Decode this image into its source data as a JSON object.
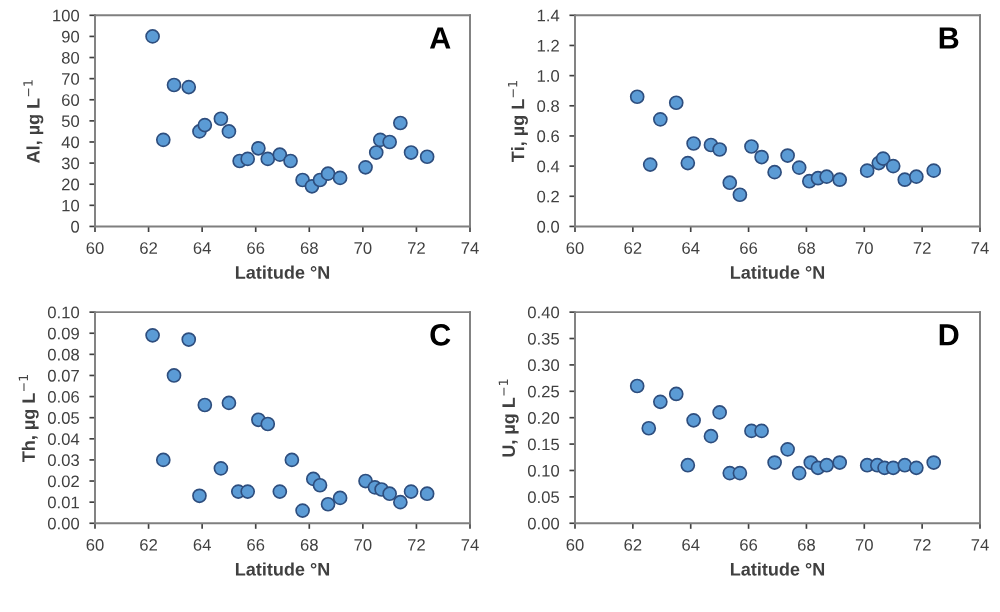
{
  "chart_data": [
    {
      "type": "scatter",
      "xlabel": "Latitude °N",
      "ylabel": "Al, µg L$^{−1}$",
      "annotations": [
        "A"
      ],
      "marker": "circle",
      "grid": false,
      "legend": false,
      "xlim": [
        60,
        74
      ],
      "xticks": [
        60,
        62,
        64,
        66,
        68,
        70,
        72,
        74
      ],
      "ylim": [
        0,
        100
      ],
      "yticks": [
        0,
        10,
        20,
        30,
        40,
        50,
        60,
        70,
        80,
        90,
        100
      ],
      "series": [
        {
          "color": "#5b9bd5",
          "x": [
            62.15,
            62.55,
            62.95,
            63.5,
            63.9,
            64.1,
            64.7,
            65.0,
            65.4,
            65.7,
            66.1,
            66.45,
            66.9,
            67.3,
            67.75,
            68.1,
            68.4,
            68.7,
            69.15,
            70.1,
            70.5,
            70.65,
            71.0,
            71.4,
            71.8,
            72.4
          ],
          "values": [
            90,
            41,
            67,
            66,
            45,
            48,
            51,
            45,
            31,
            32,
            37,
            32,
            34,
            31,
            22,
            19,
            22,
            25,
            23,
            28,
            35,
            41,
            40,
            49,
            35,
            33
          ]
        }
      ]
    },
    {
      "type": "scatter",
      "xlabel": "Latitude °N",
      "ylabel": "Ti, µg L$^{−1}$",
      "annotations": [
        "B"
      ],
      "marker": "circle",
      "grid": false,
      "legend": false,
      "xlim": [
        60,
        74
      ],
      "xticks": [
        60,
        62,
        64,
        66,
        68,
        70,
        72,
        74
      ],
      "ylim": [
        0,
        1.4
      ],
      "yticks": [
        {
          "value": 0,
          "label": "0.0"
        },
        {
          "value": 0.2,
          "label": "0.2"
        },
        {
          "value": 0.4,
          "label": "0.4"
        },
        {
          "value": 0.6,
          "label": "0.6"
        },
        {
          "value": 0.8,
          "label": "0.8"
        },
        {
          "value": 1.0,
          "label": "1.0"
        },
        {
          "value": 1.2,
          "label": "1.2"
        },
        {
          "value": 1.4,
          "label": "1.4"
        }
      ],
      "series": [
        {
          "color": "#5b9bd5",
          "x": [
            62.15,
            62.6,
            62.95,
            63.5,
            63.9,
            64.1,
            64.7,
            65.0,
            65.35,
            65.7,
            66.1,
            66.45,
            66.9,
            67.35,
            67.75,
            68.1,
            68.4,
            68.7,
            69.15,
            70.1,
            70.5,
            70.65,
            71.0,
            71.4,
            71.8,
            72.4
          ],
          "values": [
            0.86,
            0.41,
            0.71,
            0.82,
            0.42,
            0.55,
            0.54,
            0.51,
            0.29,
            0.21,
            0.53,
            0.46,
            0.36,
            0.47,
            0.39,
            0.3,
            0.32,
            0.33,
            0.31,
            0.37,
            0.42,
            0.45,
            0.4,
            0.31,
            0.33,
            0.37
          ]
        }
      ]
    },
    {
      "type": "scatter",
      "xlabel": "Latitude °N",
      "ylabel": "Th, µg L$^{−1}$",
      "annotations": [
        "C"
      ],
      "marker": "circle",
      "grid": false,
      "legend": false,
      "xlim": [
        60,
        74
      ],
      "xticks": [
        60,
        62,
        64,
        66,
        68,
        70,
        72,
        74
      ],
      "ylim": [
        0,
        0.1
      ],
      "yticks": [
        {
          "value": 0,
          "label": "0.00"
        },
        {
          "value": 0.01,
          "label": "0.01"
        },
        {
          "value": 0.02,
          "label": "0.02"
        },
        {
          "value": 0.03,
          "label": "0.03"
        },
        {
          "value": 0.04,
          "label": "0.04"
        },
        {
          "value": 0.05,
          "label": "0.05"
        },
        {
          "value": 0.06,
          "label": "0.06"
        },
        {
          "value": 0.07,
          "label": "0.07"
        },
        {
          "value": 0.08,
          "label": "0.08"
        },
        {
          "value": 0.09,
          "label": "0.09"
        },
        {
          "value": 0.1,
          "label": "0.10"
        }
      ],
      "series": [
        {
          "color": "#5b9bd5",
          "x": [
            62.15,
            62.55,
            62.95,
            63.5,
            63.9,
            64.1,
            64.7,
            65.0,
            65.35,
            65.7,
            66.1,
            66.45,
            66.9,
            67.35,
            67.75,
            68.15,
            68.4,
            68.7,
            69.15,
            70.1,
            70.45,
            70.7,
            71.0,
            71.4,
            71.8,
            72.4
          ],
          "values": [
            0.089,
            0.03,
            0.07,
            0.087,
            0.013,
            0.056,
            0.026,
            0.057,
            0.015,
            0.015,
            0.049,
            0.047,
            0.015,
            0.03,
            0.006,
            0.021,
            0.018,
            0.009,
            0.012,
            0.02,
            0.017,
            0.016,
            0.014,
            0.01,
            0.015,
            0.014
          ]
        }
      ]
    },
    {
      "type": "scatter",
      "xlabel": "Latitude °N",
      "ylabel": "U, µg L$^{−1}$",
      "annotations": [
        "D"
      ],
      "marker": "circle",
      "grid": false,
      "legend": false,
      "xlim": [
        60,
        74
      ],
      "xticks": [
        60,
        62,
        64,
        66,
        68,
        70,
        72,
        74
      ],
      "ylim": [
        0,
        0.4
      ],
      "yticks": [
        {
          "value": 0,
          "label": "0.00"
        },
        {
          "value": 0.05,
          "label": "0.05"
        },
        {
          "value": 0.1,
          "label": "0.10"
        },
        {
          "value": 0.15,
          "label": "0.15"
        },
        {
          "value": 0.2,
          "label": "0.20"
        },
        {
          "value": 0.25,
          "label": "0.25"
        },
        {
          "value": 0.3,
          "label": "0.30"
        },
        {
          "value": 0.35,
          "label": "0.35"
        },
        {
          "value": 0.4,
          "label": "0.40"
        }
      ],
      "series": [
        {
          "color": "#5b9bd5",
          "x": [
            62.15,
            62.55,
            62.95,
            63.5,
            63.9,
            64.1,
            64.7,
            65.0,
            65.35,
            65.7,
            66.1,
            66.45,
            66.9,
            67.35,
            67.75,
            68.15,
            68.4,
            68.7,
            69.15,
            70.1,
            70.45,
            70.7,
            71.0,
            71.4,
            71.8,
            72.4
          ],
          "values": [
            0.26,
            0.18,
            0.23,
            0.245,
            0.11,
            0.195,
            0.165,
            0.21,
            0.095,
            0.095,
            0.175,
            0.175,
            0.115,
            0.14,
            0.095,
            0.115,
            0.105,
            0.11,
            0.115,
            0.11,
            0.11,
            0.105,
            0.105,
            0.11,
            0.105,
            0.115
          ]
        }
      ]
    }
  ]
}
